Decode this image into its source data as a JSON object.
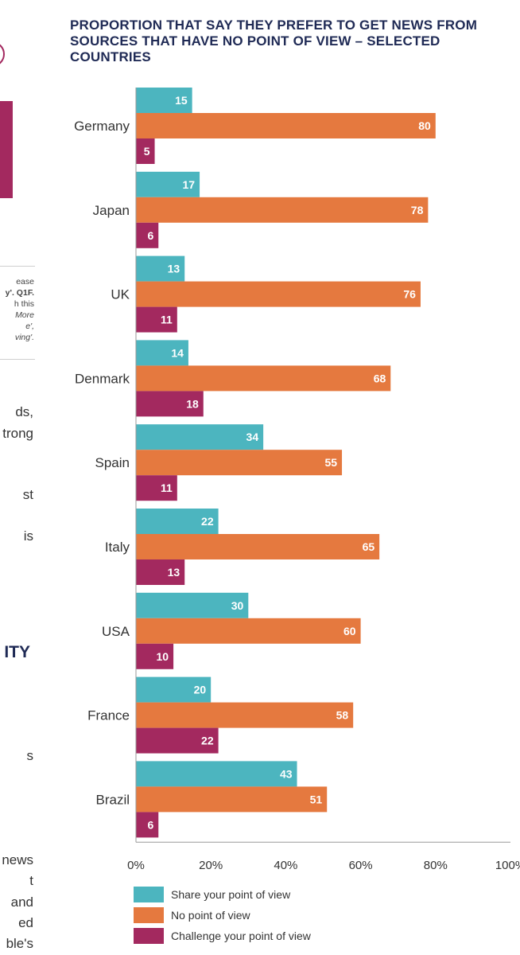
{
  "left_column": {
    "note_lines": [
      "ease",
      "y'. Q1F.",
      "h this",
      "More",
      "e',",
      "ving'."
    ],
    "text_fragments": [
      "ds,",
      "trong",
      "st",
      "is",
      "s",
      "news",
      "t",
      "and",
      "ed",
      "ble's"
    ],
    "heading_fragment": "ITY"
  },
  "chart_data": {
    "type": "bar",
    "orientation": "horizontal",
    "title": "PROPORTION THAT SAY THEY PREFER TO GET NEWS FROM SOURCES THAT HAVE NO POINT OF VIEW – SELECTED COUNTRIES",
    "categories": [
      "Germany",
      "Japan",
      "UK",
      "Denmark",
      "Spain",
      "Italy",
      "USA",
      "France",
      "Brazil"
    ],
    "series": [
      {
        "name": "Share your point of view",
        "color": "#4cb5bf",
        "values": [
          15,
          17,
          13,
          14,
          34,
          22,
          30,
          20,
          43
        ]
      },
      {
        "name": "No point of view",
        "color": "#e5793f",
        "values": [
          80,
          78,
          76,
          68,
          55,
          65,
          60,
          58,
          51
        ]
      },
      {
        "name": "Challenge your point of view",
        "color": "#a3295f",
        "values": [
          5,
          6,
          11,
          18,
          11,
          13,
          10,
          22,
          6
        ]
      }
    ],
    "xlim": [
      0,
      100
    ],
    "x_ticks": [
      "0%",
      "20%",
      "40%",
      "60%",
      "80%",
      "100%"
    ],
    "xlabel": "",
    "ylabel": "",
    "legend_position": "bottom-left",
    "grid": false
  }
}
